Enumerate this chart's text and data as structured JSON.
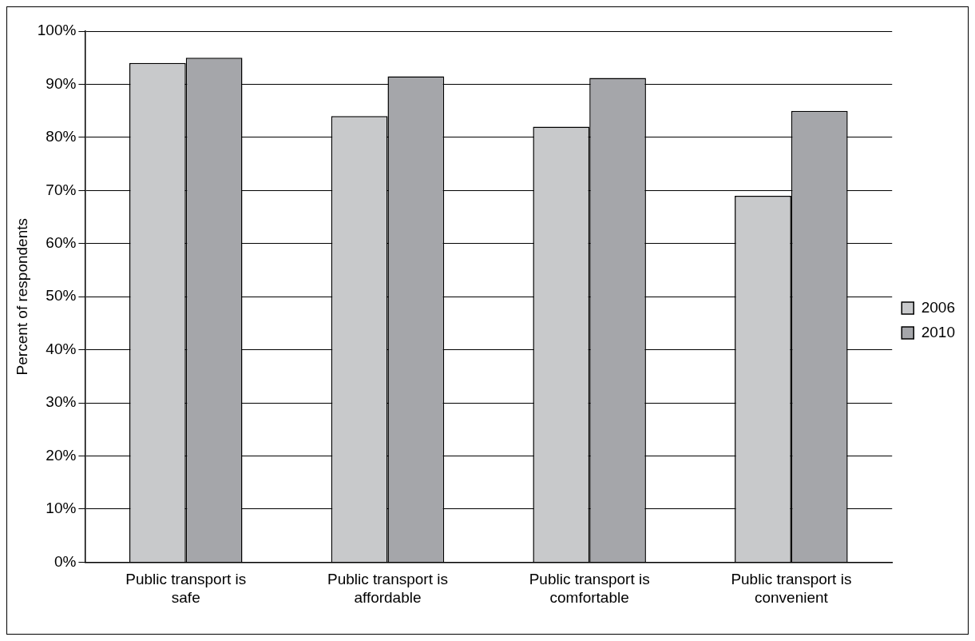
{
  "chart_data": {
    "type": "bar",
    "ylabel": "Percent of respondents",
    "categories": [
      "Public transport is safe",
      "Public transport is affordable",
      "Public transport is comfortable",
      "Public transport is convenient"
    ],
    "series": [
      {
        "name": "2006",
        "color": "#c8c9cb",
        "values": [
          94,
          84,
          82,
          69
        ]
      },
      {
        "name": "2010",
        "color": "#a5a6aa",
        "values": [
          95,
          91.5,
          91.2,
          85
        ]
      }
    ],
    "ylim": [
      0,
      100
    ],
    "yticks": [
      {
        "value": 0,
        "label": "0%"
      },
      {
        "value": 10,
        "label": "10%"
      },
      {
        "value": 20,
        "label": "20%"
      },
      {
        "value": 30,
        "label": "30%"
      },
      {
        "value": 40,
        "label": "40%"
      },
      {
        "value": 50,
        "label": "50%"
      },
      {
        "value": 60,
        "label": "60%"
      },
      {
        "value": 70,
        "label": "70%"
      },
      {
        "value": 80,
        "label": "80%"
      },
      {
        "value": 90,
        "label": "90%"
      },
      {
        "value": 100,
        "label": "100%"
      }
    ],
    "grid": "y",
    "legend": "right"
  }
}
